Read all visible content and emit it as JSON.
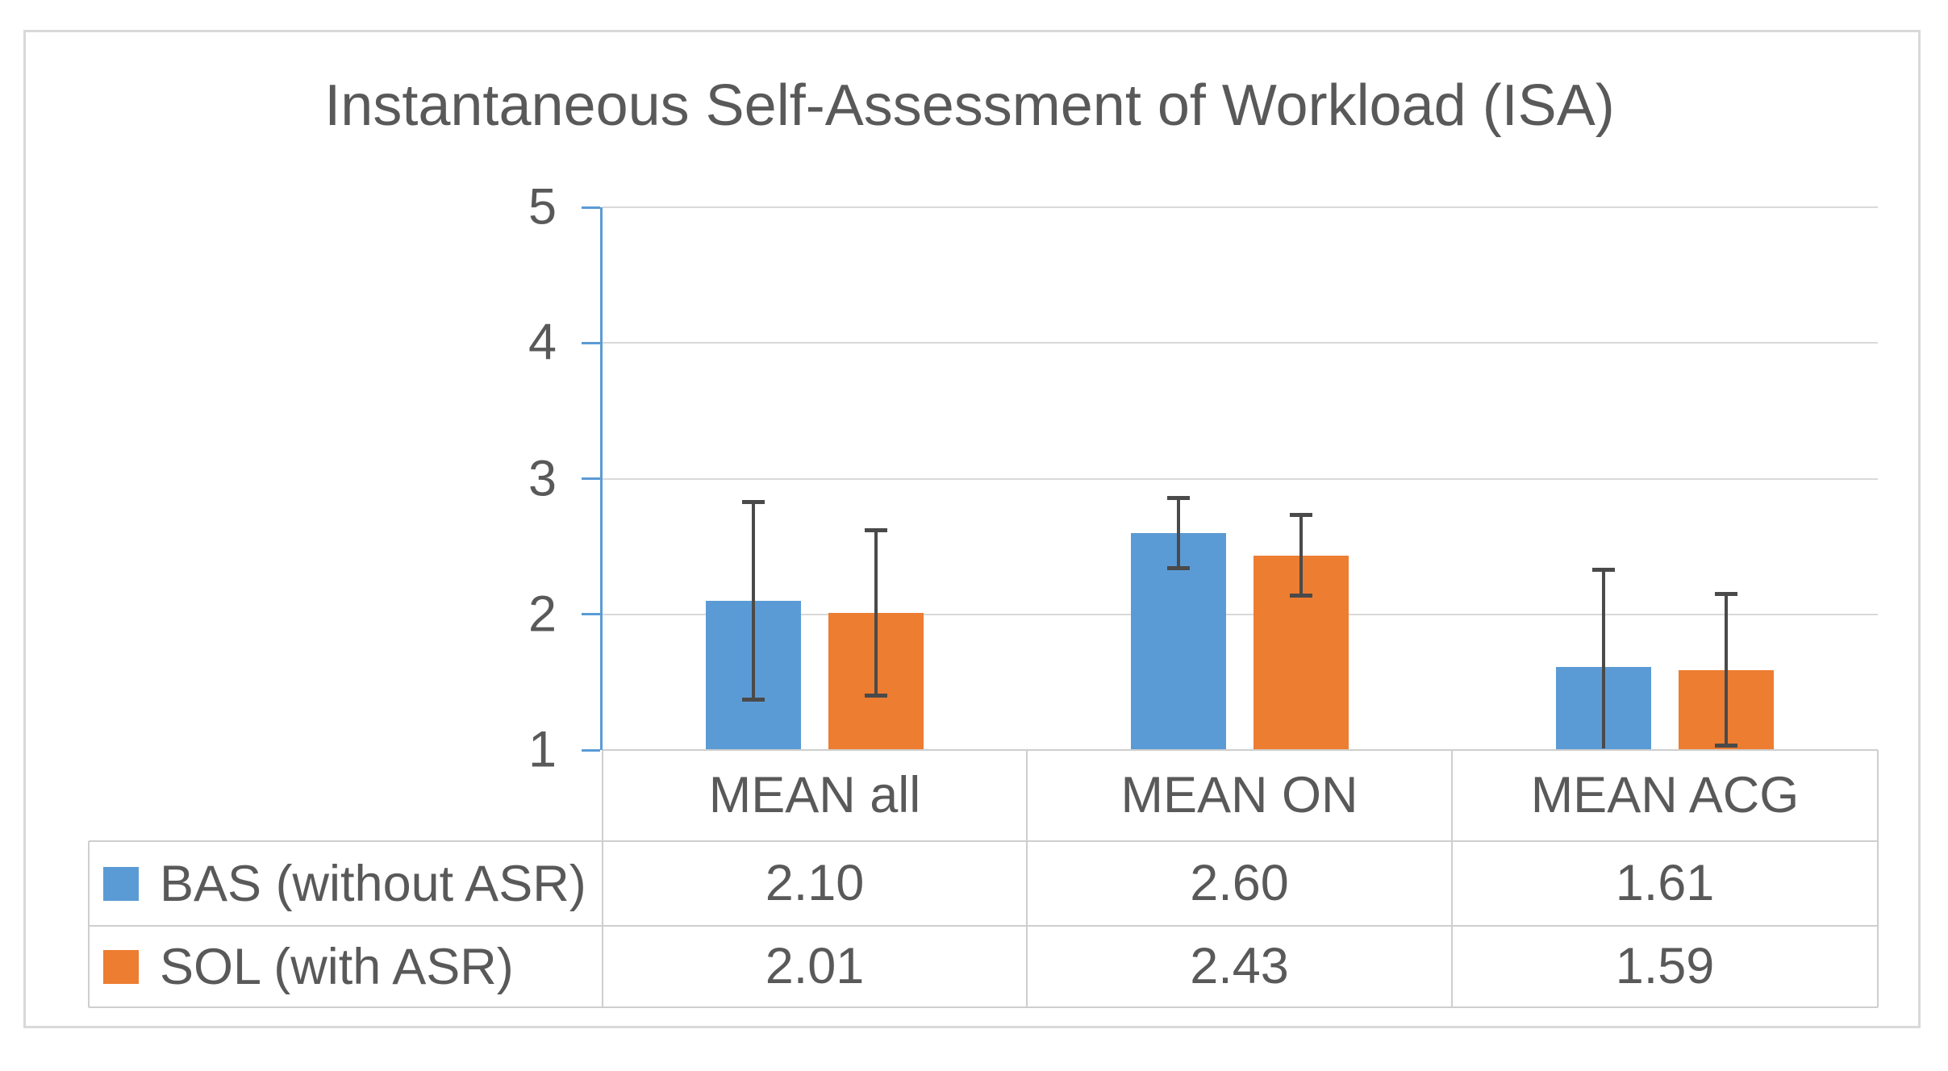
{
  "title": "Instantaneous Self-Assessment of Workload (ISA)",
  "colors": {
    "bas": "#5b9bd5",
    "sol": "#ed7d31",
    "text": "#595959",
    "gridline": "#d9d9d9",
    "table_border": "#cfcece",
    "error_bar": "#4a4a4a",
    "axis_line": "#5b9bd5",
    "frame_border": "#d9d9d9"
  },
  "chart_data": {
    "type": "bar",
    "title": "Instantaneous Self-Assessment of Workload (ISA)",
    "categories": [
      "MEAN all",
      "MEAN ON",
      "MEAN ACG"
    ],
    "series": [
      {
        "name": "BAS (without ASR)",
        "color_key": "bas",
        "values": [
          2.1,
          2.6,
          1.61
        ],
        "error_high": [
          2.83,
          2.86,
          2.33
        ],
        "error_low": [
          1.37,
          2.34,
          1.0
        ],
        "error_low_cap": [
          true,
          true,
          false
        ]
      },
      {
        "name": "SOL (with ASR)",
        "color_key": "sol",
        "values": [
          2.01,
          2.43,
          1.59
        ],
        "error_high": [
          2.62,
          2.73,
          2.15
        ],
        "error_low": [
          1.4,
          2.14,
          1.03
        ],
        "error_low_cap": [
          true,
          true,
          true
        ]
      }
    ],
    "y_axis": {
      "min": 1,
      "max": 5,
      "tick_step": 1,
      "tick_labels": [
        "1",
        "2",
        "3",
        "4",
        "5"
      ]
    },
    "gridlines": true,
    "legend_position": "table-left"
  },
  "data_table": {
    "column_headers": [
      "MEAN all",
      "MEAN ON",
      "MEAN ACG"
    ],
    "rows": [
      {
        "label": "BAS (without ASR)",
        "swatch_color_key": "bas",
        "values": [
          "2.10",
          "2.60",
          "1.61"
        ]
      },
      {
        "label": "SOL (with ASR)",
        "swatch_color_key": "sol",
        "values": [
          "2.01",
          "2.43",
          "1.59"
        ]
      }
    ]
  }
}
